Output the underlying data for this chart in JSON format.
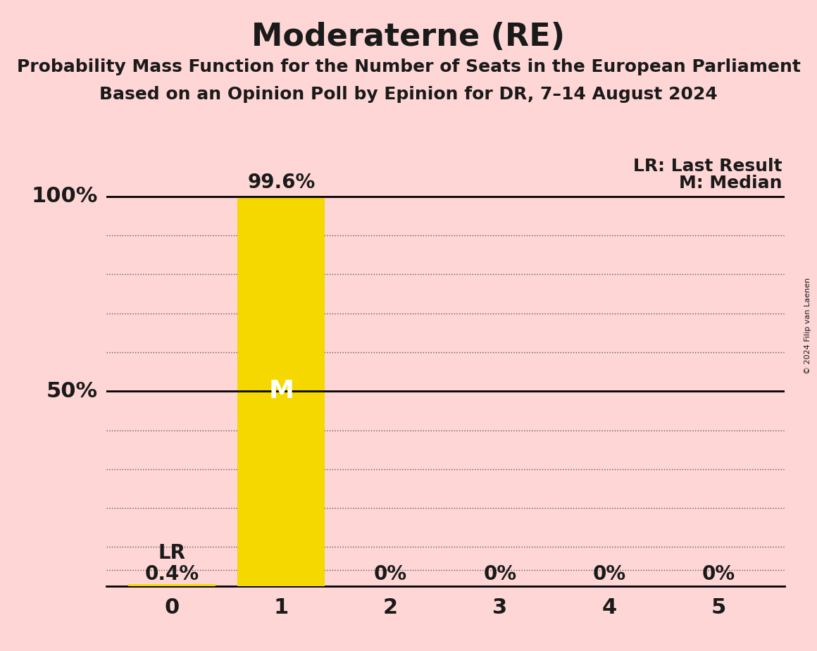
{
  "title": "Moderaterne (RE)",
  "subtitle1": "Probability Mass Function for the Number of Seats in the European Parliament",
  "subtitle2": "Based on an Opinion Poll by Epinion for DR, 7–14 August 2024",
  "copyright": "© 2024 Filip van Laenen",
  "x_values": [
    0,
    1,
    2,
    3,
    4,
    5
  ],
  "probabilities": [
    0.004,
    0.996,
    0.0,
    0.0,
    0.0,
    0.0
  ],
  "bar_labels": [
    "0.4%",
    "99.6%",
    "0%",
    "0%",
    "0%",
    "0%"
  ],
  "bar_color": "#F5D800",
  "median": 1,
  "last_result": 0,
  "median_label": "M",
  "lr_label": "LR",
  "legend_lr": "LR: Last Result",
  "legend_m": "M: Median",
  "background_color": "#FFD6D6",
  "text_color": "#1a1a1a",
  "median_text_color": "#FFFFFF",
  "ylabel_100": "100%",
  "ylabel_50": "50%",
  "solid_line_color": "#000000",
  "dotted_line_color": "#555555",
  "title_fontsize": 32,
  "subtitle_fontsize": 18,
  "tick_fontsize": 22,
  "label_fontsize": 20,
  "legend_fontsize": 18,
  "ylabel_fontsize": 22,
  "m_fontsize": 26,
  "lr_fontsize": 20,
  "copyright_fontsize": 8
}
